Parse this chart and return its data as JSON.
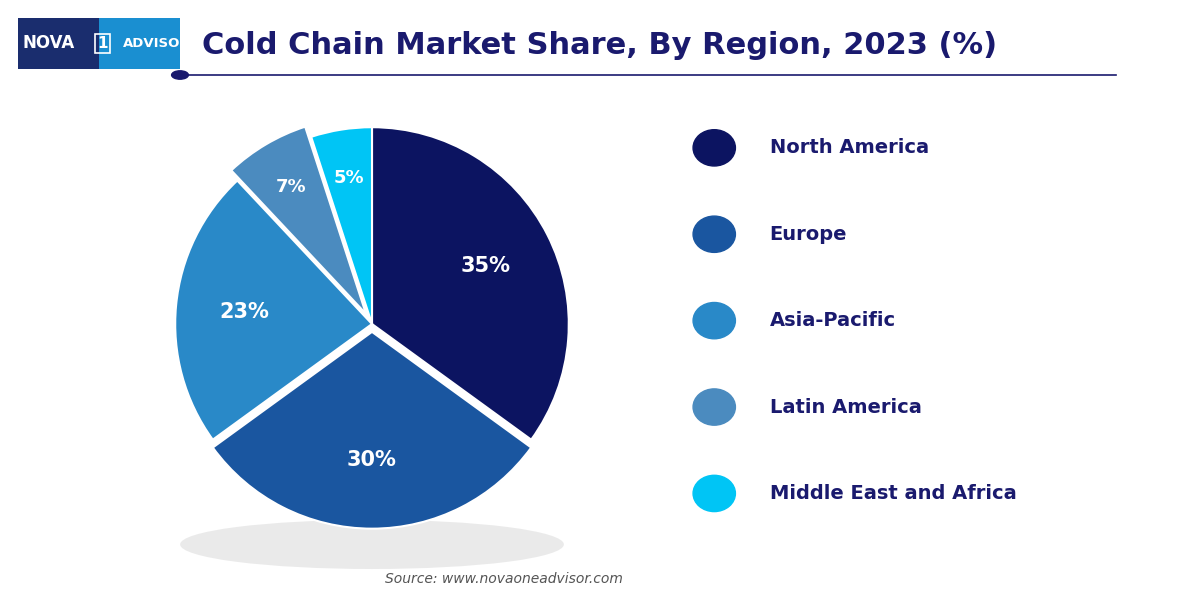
{
  "title": "Cold Chain Market Share, By Region, 2023 (%)",
  "title_color": "#1a1a6e",
  "title_fontsize": 22,
  "slices": [
    35,
    30,
    23,
    7,
    5
  ],
  "labels": [
    "North America",
    "Europe",
    "Asia-Pacific",
    "Latin America",
    "Middle East and Africa"
  ],
  "pct_labels": [
    "35%",
    "30%",
    "23%",
    "7%",
    "5%"
  ],
  "colors": [
    "#0c1461",
    "#1a56a0",
    "#2989c8",
    "#4b8bbf",
    "#00c5f5"
  ],
  "explode": [
    0,
    0.04,
    0,
    0.06,
    0
  ],
  "legend_labels": [
    "North America",
    "Europe",
    "Asia-Pacific",
    "Latin America",
    "Middle East and Africa"
  ],
  "legend_colors": [
    "#0c1461",
    "#1a56a0",
    "#2989c8",
    "#4b8bbf",
    "#00c5f5"
  ],
  "source_text": "Source: www.novaoneadvisor.com",
  "background_color": "#ffffff",
  "text_color": "#1a1a6e",
  "separator_color": "#1a1a6e",
  "logo_bg_dark": "#1a2d6e",
  "logo_bg_light": "#1a8fd1",
  "startangle": 90
}
